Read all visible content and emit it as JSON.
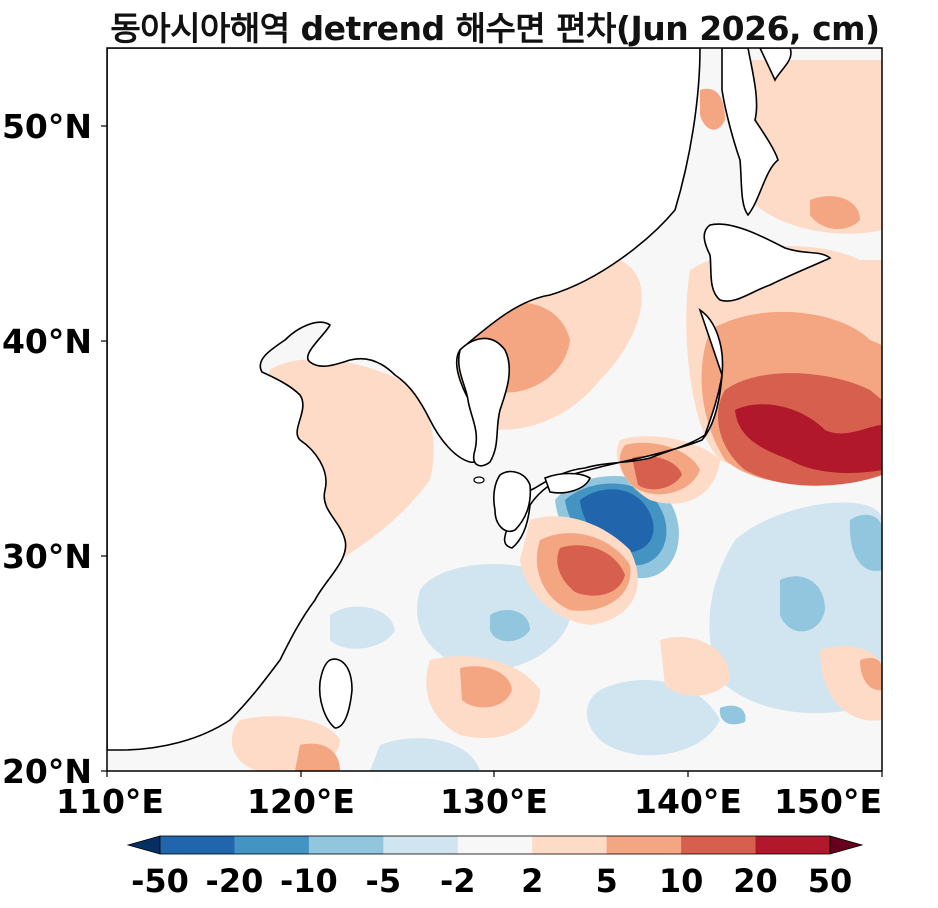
{
  "title": "동아시아해역 detrend 해수면 편차(Jun 2026, cm)",
  "axes": {
    "lat_ticks": [
      "20°N",
      "30°N",
      "40°N",
      "50°N"
    ],
    "lon_ticks": [
      "110°E",
      "120°E",
      "130°E",
      "140°E",
      "150°E"
    ],
    "lat_values": [
      20,
      30,
      40,
      50
    ],
    "lon_values": [
      110,
      120,
      130,
      140,
      150
    ],
    "lon_range": [
      110,
      150
    ],
    "lat_range": [
      20,
      53.5
    ]
  },
  "colorbar": {
    "labels": [
      "-50",
      "-20",
      "-10",
      "-5",
      "-2",
      "2",
      "5",
      "10",
      "20",
      "50"
    ],
    "colors": [
      "#053061",
      "#2166ac",
      "#4393c3",
      "#92c5de",
      "#d1e5f0",
      "#f7f7f7",
      "#fddbc7",
      "#f4a582",
      "#d6604d",
      "#b2182b",
      "#67001f"
    ]
  },
  "colors": {
    "land": "#ffffff",
    "coast": "#000000",
    "neutral": "#f7f7f7"
  }
}
